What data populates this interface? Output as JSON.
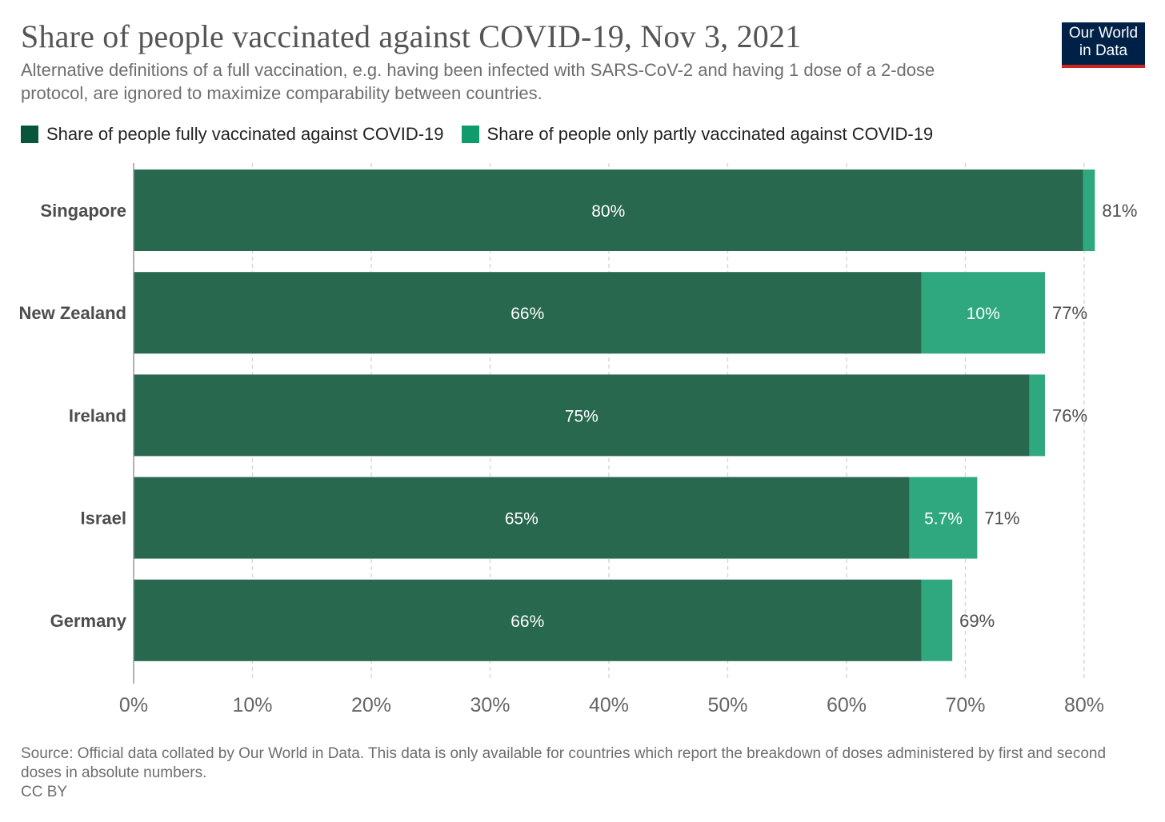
{
  "header": {
    "title": "Share of people vaccinated against COVID-19, Nov 3, 2021",
    "subtitle": "Alternative definitions of a full vaccination, e.g. having been infected with SARS-CoV-2 and having 1 dose of a 2-dose protocol, are ignored to maximize comparability between countries.",
    "logo_line1": "Our World",
    "logo_line2": "in Data"
  },
  "footer": {
    "source": "Source: Official data collated by Our World in Data. This data is only available for countries which report the breakdown of doses administered by first and second doses in absolute numbers.",
    "license": "CC BY"
  },
  "colors": {
    "full": "#28684f",
    "partial": "#2fa880",
    "legend_full": "#07553a",
    "legend_partial": "#109b6c",
    "logo_bg": "#002147",
    "logo_bar": "#ce261e"
  },
  "chart_data": {
    "type": "bar",
    "orientation": "horizontal",
    "stacked": true,
    "categories": [
      "Singapore",
      "New Zealand",
      "Ireland",
      "Israel",
      "Germany"
    ],
    "series": [
      {
        "name": "Share of people fully vaccinated against COVID-19",
        "values": [
          79.9,
          66.3,
          75.4,
          65.3,
          66.3
        ],
        "labels": [
          "80%",
          "66%",
          "75%",
          "65%",
          "66%"
        ]
      },
      {
        "name": "Share of people only partly vaccinated against COVID-19",
        "values": [
          1.0,
          10.4,
          1.3,
          5.7,
          2.6
        ],
        "labels": [
          "",
          "10%",
          "",
          "5.7%",
          ""
        ]
      }
    ],
    "totals": [
      "81%",
      "77%",
      "76%",
      "71%",
      "69%"
    ],
    "xlim": [
      0,
      80
    ],
    "xticks": [
      "0%",
      "10%",
      "20%",
      "30%",
      "40%",
      "50%",
      "60%",
      "70%",
      "80%"
    ],
    "tick_values": [
      0,
      10,
      20,
      30,
      40,
      50,
      60,
      70,
      80
    ],
    "grid": true,
    "legend_position": "top-left"
  }
}
